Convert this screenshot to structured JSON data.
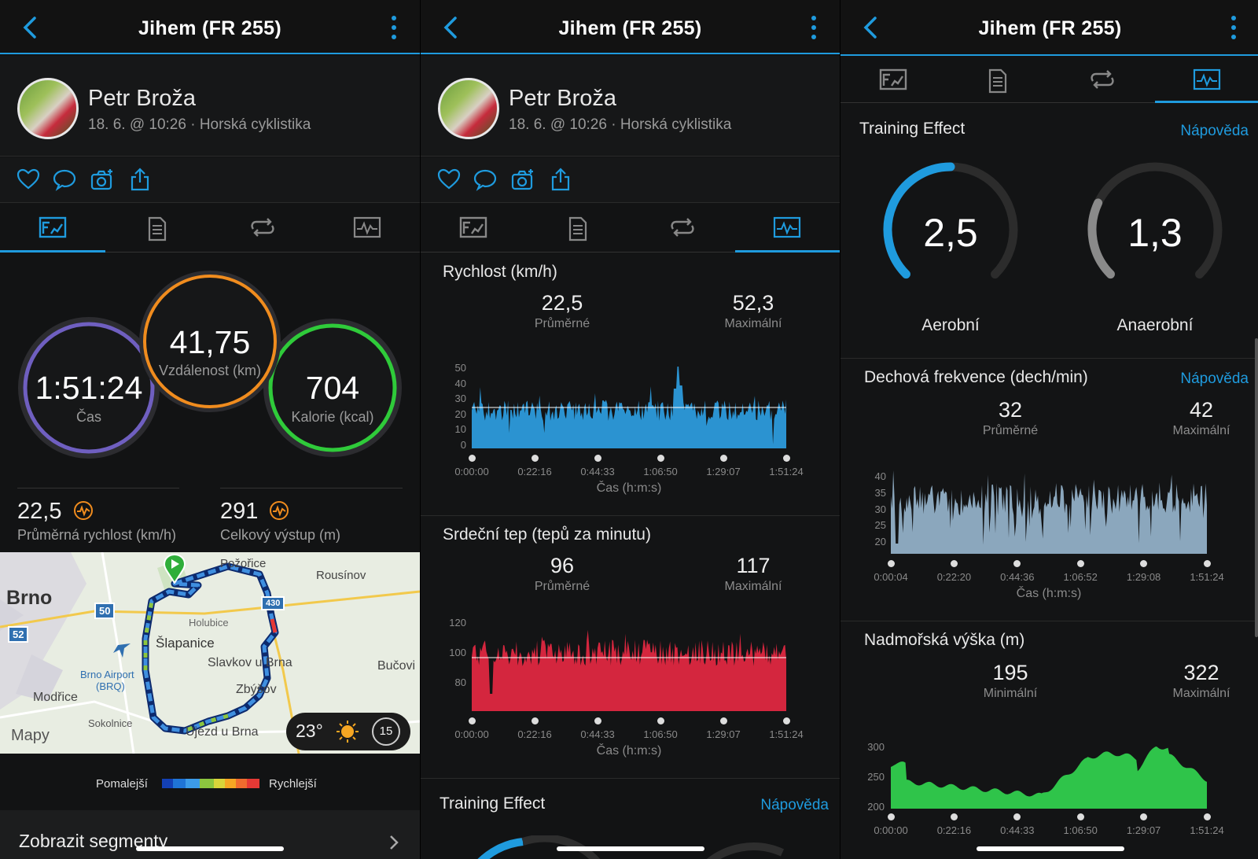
{
  "screens": [
    {
      "header_title": "Jihem (FR 255)",
      "user_name": "Petr Broža",
      "activity_meta": "18. 6. @ 10:26 · Horská cyklistika",
      "rings": {
        "time": {
          "value": "1:51:24",
          "label": "Čas"
        },
        "distance": {
          "value": "41,75",
          "label": "Vzdálenost (km)"
        },
        "calories": {
          "value": "704",
          "label": "Kalorie (kcal)"
        }
      },
      "stats": [
        {
          "value": "22,5",
          "label": "Průměrná rychlost (km/h)"
        },
        {
          "value": "291",
          "label": "Celkový výstup (m)"
        }
      ],
      "map": {
        "places": [
          "Brno",
          "Požořice",
          "Rousínov",
          "Holubice",
          "Šlapanice",
          "Slavkov u Brna",
          "Bučovi",
          "Brno Airport",
          "(BRQ)",
          "Modřice",
          "Zbýšov",
          "Sokolnice",
          "Újezd u Brna"
        ],
        "roads": [
          "50",
          "52",
          "430"
        ],
        "attribution": "Mapy",
        "temperature": "23°",
        "wind": "15"
      },
      "legend": {
        "slower": "Pomalejší",
        "faster": "Rychlejší"
      },
      "segments_label": "Zobrazit segmenty",
      "colors": {
        "time_ring": "#6f5fc0",
        "distance_ring": "#f08c1e",
        "calories_ring": "#2fcb3a",
        "accent": "#1f9bde"
      }
    },
    {
      "header_title": "Jihem (FR 255)",
      "user_name": "Petr Broža",
      "activity_meta": "18. 6. @ 10:26 · Horská cyklistika",
      "speed": {
        "title": "Rychlost (km/h)",
        "avg": "22,5",
        "avg_label": "Průměrné",
        "max": "52,3",
        "max_label": "Maximální",
        "yticks": [
          "50",
          "40",
          "30",
          "20",
          "10",
          "0"
        ],
        "xticks": [
          "0:00:00",
          "0:22:16",
          "0:44:33",
          "1:06:50",
          "1:29:07",
          "1:51:24"
        ],
        "xlabel": "Čas (h:m:s)",
        "color": "#2b93d1"
      },
      "heart": {
        "title": "Srdeční tep (tepů za minutu)",
        "avg": "96",
        "avg_label": "Průměrné",
        "max": "117",
        "max_label": "Maximální",
        "yticks": [
          "120",
          "100",
          "80"
        ],
        "xticks": [
          "0:00:00",
          "0:22:16",
          "0:44:33",
          "1:06:50",
          "1:29:07",
          "1:51:24"
        ],
        "xlabel": "Čas (h:m:s)",
        "color": "#d4263e"
      },
      "training": {
        "title": "Training Effect",
        "help": "Nápověda"
      }
    },
    {
      "header_title": "Jihem (FR 255)",
      "training": {
        "title": "Training Effect",
        "help": "Nápověda",
        "aerobic": {
          "value": "2,5",
          "label": "Aerobní",
          "fraction": 0.5
        },
        "anaerobic": {
          "value": "1,3",
          "label": "Anaerobní",
          "fraction": 0.26
        }
      },
      "breath": {
        "title": "Dechová frekvence (dech/min)",
        "help": "Nápověda",
        "avg": "32",
        "avg_label": "Průměrné",
        "max": "42",
        "max_label": "Maximální",
        "yticks": [
          "40",
          "35",
          "30",
          "25",
          "20"
        ],
        "xticks": [
          "0:00:04",
          "0:22:20",
          "0:44:36",
          "1:06:52",
          "1:29:08",
          "1:51:24"
        ],
        "xlabel": "Čas (h:m:s)",
        "color": "#8ba7bd"
      },
      "elevation": {
        "title": "Nadmořská výška (m)",
        "min": "195",
        "min_label": "Minimální",
        "max": "322",
        "max_label": "Maximální",
        "yticks": [
          "300",
          "250",
          "200"
        ],
        "xticks": [
          "0:00:00",
          "0:22:16",
          "0:44:33",
          "1:06:50",
          "1:29:07",
          "1:51:24"
        ],
        "color": "#2fc44a"
      }
    }
  ]
}
